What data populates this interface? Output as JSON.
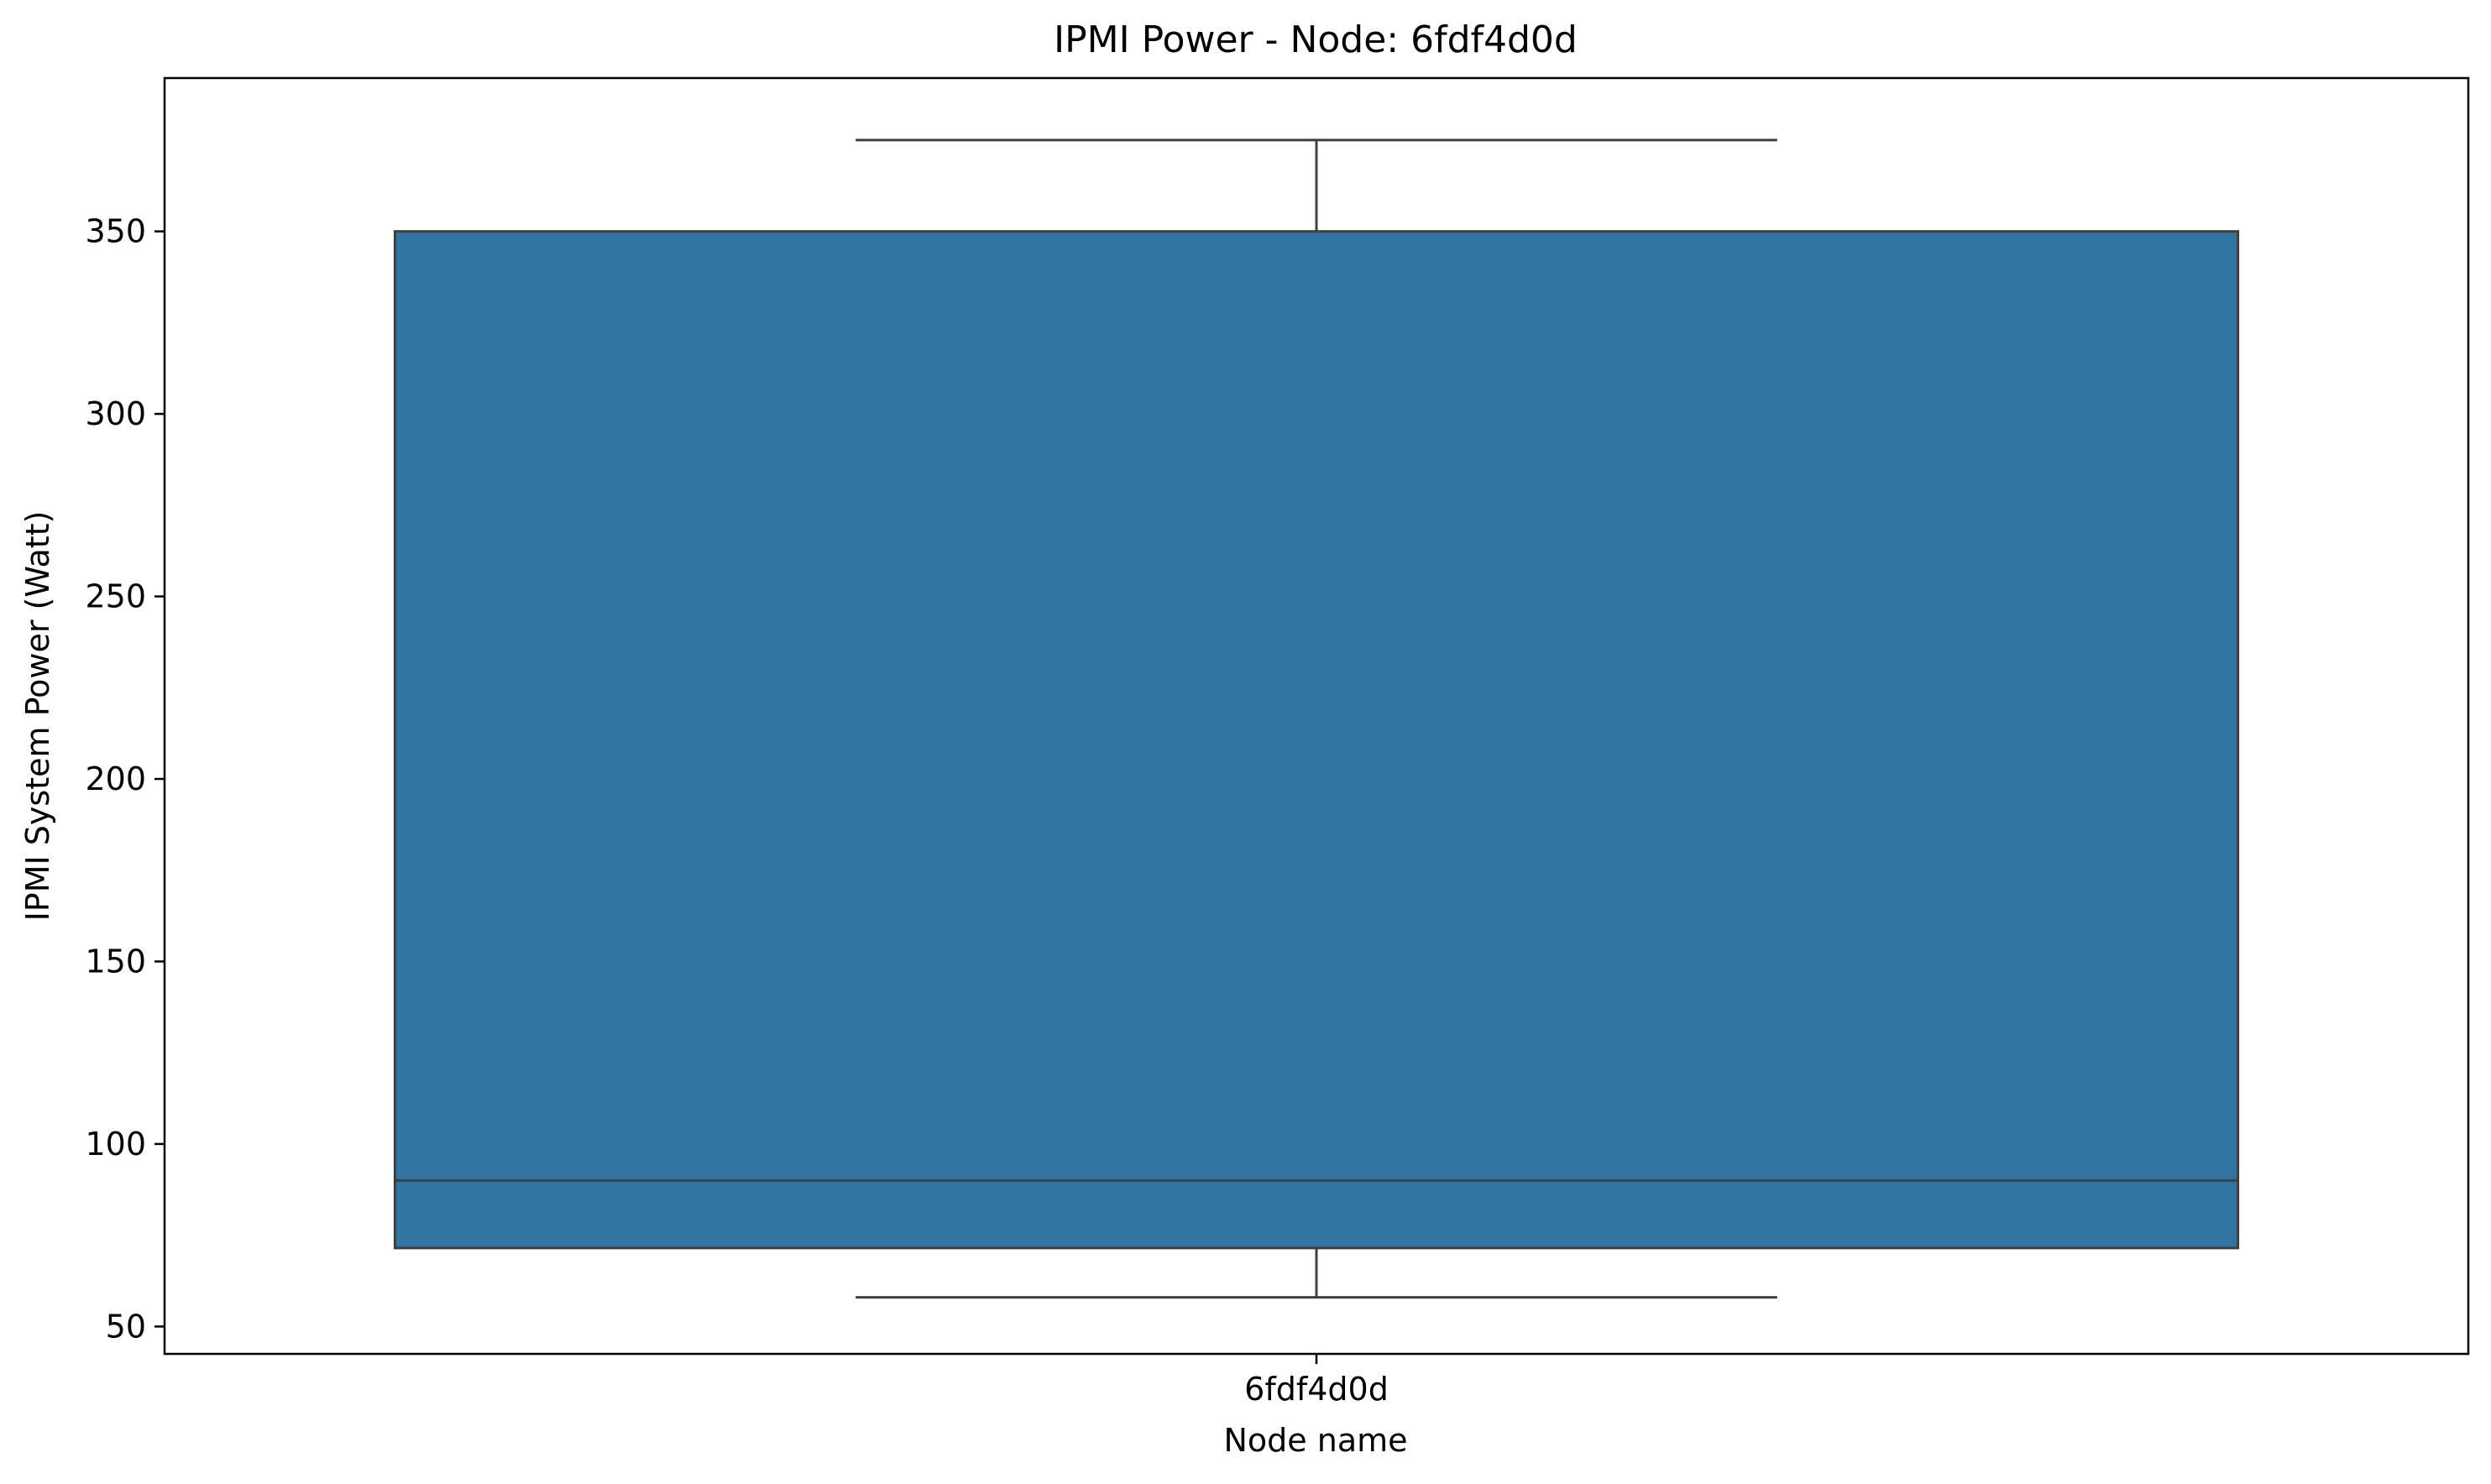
{
  "chart_data": {
    "type": "box",
    "title": "IPMI Power - Node: 6fdf4d0d",
    "xlabel": "Node name",
    "ylabel": "IPMI System Power (Watt)",
    "ylim": [
      42.5,
      392
    ],
    "yticks": [
      50,
      100,
      150,
      200,
      250,
      300,
      350
    ],
    "categories": [
      "6fdf4d0d"
    ],
    "boxes": [
      {
        "name": "6fdf4d0d",
        "whisker_low": 58,
        "q1": 71.5,
        "median": 90,
        "q3": 350,
        "whisker_high": 375
      }
    ],
    "colors": {
      "box_fill": "#3274a1",
      "lines": "#3f3f3f",
      "axes": "#000000"
    }
  }
}
